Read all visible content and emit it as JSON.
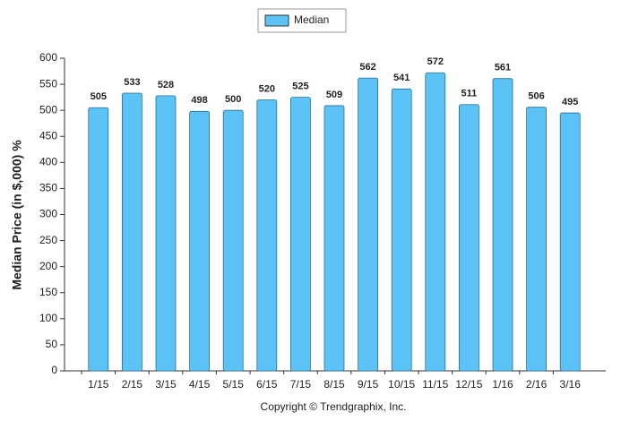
{
  "chart_data": {
    "type": "bar",
    "y_label": "Median Price (in $,000) %",
    "footer": "Copyright © Trendgraphix, Inc.",
    "categories": [
      "1/15",
      "2/15",
      "3/15",
      "4/15",
      "5/15",
      "6/15",
      "7/15",
      "8/15",
      "9/15",
      "10/15",
      "11/15",
      "12/15",
      "1/16",
      "2/16",
      "3/16"
    ],
    "series": [
      {
        "name": "Median",
        "color": "#5bc3f5",
        "values": [
          505,
          533,
          528,
          498,
          500,
          520,
          525,
          509,
          562,
          541,
          572,
          511,
          561,
          506,
          495
        ]
      }
    ],
    "ylim": [
      0,
      600
    ],
    "yticks": [
      0,
      50,
      100,
      150,
      200,
      250,
      300,
      350,
      400,
      450,
      500,
      550,
      600
    ],
    "legend": "top",
    "grid": false
  }
}
